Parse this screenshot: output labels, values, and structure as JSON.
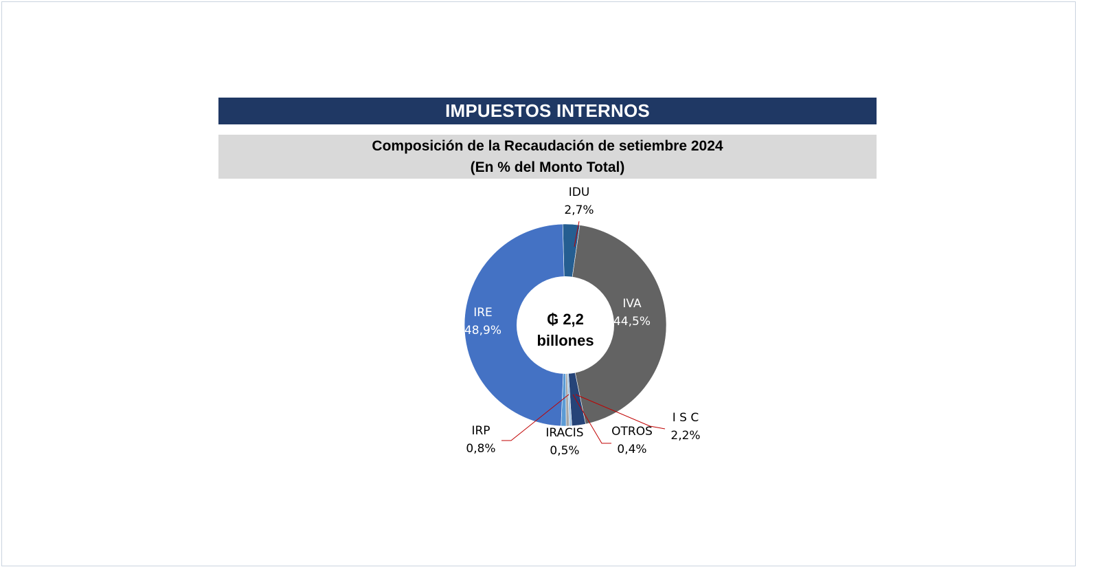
{
  "header": {
    "title": "IMPUESTOS INTERNOS",
    "subtitle_line1": "Composición de la Recaudación de setiembre 2024",
    "subtitle_line2": "(En % del Monto Total)"
  },
  "center": {
    "line1": "₲ 2,2",
    "line2": "billones"
  },
  "chart_data": {
    "type": "pie",
    "variant": "doughnut",
    "title": "Composición de la Recaudación de setiembre 2024",
    "subtitle": "(En % del Monto Total)",
    "units": "%",
    "slices": [
      {
        "name": "IDU",
        "value": 2.7,
        "label": "2,7%",
        "color": "#255e91"
      },
      {
        "name": "IVA",
        "value": 44.5,
        "label": "44,5%",
        "color": "#636363"
      },
      {
        "name": "I S C",
        "value": 2.2,
        "label": "2,2%",
        "color": "#264478"
      },
      {
        "name": "OTROS",
        "value": 0.4,
        "label": "0,4%",
        "color": "#9dc3e6"
      },
      {
        "name": "IRACIS",
        "value": 0.5,
        "label": "0,5%",
        "color": "#a5a5a5"
      },
      {
        "name": "IRP",
        "value": 0.8,
        "label": "0,8%",
        "color": "#5b9bd5"
      },
      {
        "name": "IRE",
        "value": 48.9,
        "label": "48,9%",
        "color": "#4472c4"
      }
    ]
  }
}
